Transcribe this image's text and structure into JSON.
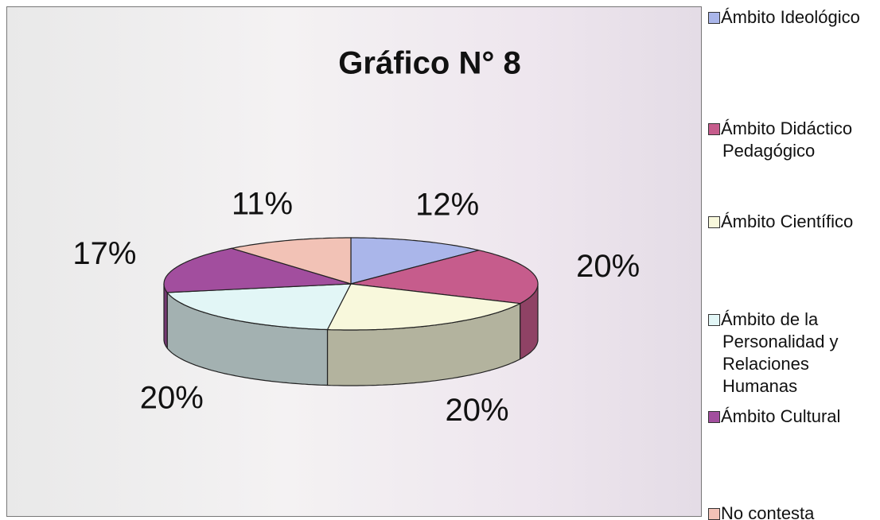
{
  "chart_data": {
    "type": "pie",
    "title": "Gráfico N° 8",
    "categories": [
      "Ámbito Ideológico",
      "Ámbito Didáctico Pedagógico",
      "Ámbito Científico",
      "Ámbito de la Personalidad y Relaciones Humanas",
      "Ámbito Cultural",
      "No contesta"
    ],
    "values": [
      12,
      20,
      20,
      20,
      17,
      11
    ],
    "value_labels": [
      "12%",
      "20%",
      "20%",
      "20%",
      "17%",
      "11%"
    ],
    "colors": [
      "#aab6ea",
      "#c65c8c",
      "#f8f8dc",
      "#e2f6f6",
      "#a24e9e",
      "#f2c2b6"
    ],
    "legend": "right"
  }
}
